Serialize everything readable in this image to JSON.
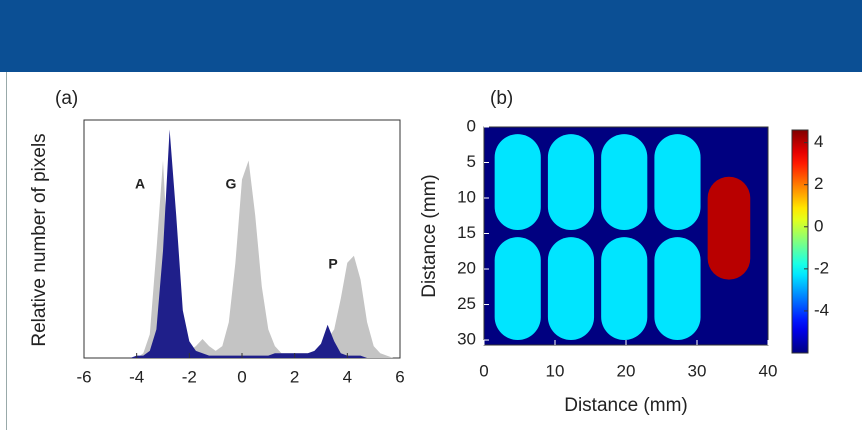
{
  "chart_data": [
    {
      "type": "area",
      "panel_label": "(a)",
      "ylabel": "Relative number of pixels",
      "x": [
        -6,
        -5.75,
        -5.5,
        -5.25,
        -5,
        -4.75,
        -4.5,
        -4.25,
        -4,
        -3.75,
        -3.5,
        -3.25,
        -3,
        -2.75,
        -2.5,
        -2.25,
        -2,
        -1.75,
        -1.5,
        -1.25,
        -1,
        -0.75,
        -0.5,
        -0.25,
        0,
        0.25,
        0.5,
        0.75,
        1,
        1.25,
        1.5,
        1.75,
        2,
        2.25,
        2.5,
        2.75,
        3,
        3.25,
        3.5,
        3.75,
        4,
        4.25,
        4.5,
        4.75,
        5,
        5.25,
        5.5,
        5.75,
        6
      ],
      "series": [
        {
          "color": "#c4c4c4",
          "values": [
            0,
            0,
            0,
            0,
            0,
            0,
            0,
            0,
            0,
            0.02,
            0.1,
            0.45,
            0.83,
            0.3,
            0.1,
            0.04,
            0.03,
            0.05,
            0.08,
            0.05,
            0.03,
            0.05,
            0.15,
            0.4,
            0.75,
            0.83,
            0.6,
            0.3,
            0.12,
            0.05,
            0.02,
            0.02,
            0.02,
            0.02,
            0.02,
            0.02,
            0.04,
            0.08,
            0.12,
            0.25,
            0.4,
            0.43,
            0.33,
            0.15,
            0.05,
            0.02,
            0.01,
            0,
            0
          ]
        },
        {
          "color": "#1f1f8a",
          "values": [
            0,
            0,
            0,
            0,
            0,
            0,
            0,
            0,
            0.01,
            0.01,
            0.03,
            0.12,
            0.45,
            0.96,
            0.6,
            0.2,
            0.07,
            0.03,
            0.02,
            0.01,
            0.01,
            0.01,
            0.01,
            0.01,
            0.01,
            0.01,
            0.01,
            0.01,
            0.01,
            0.02,
            0.02,
            0.02,
            0.02,
            0.02,
            0.02,
            0.03,
            0.06,
            0.14,
            0.07,
            0.02,
            0.01,
            0.01,
            0.01,
            0,
            0,
            0,
            0,
            0,
            0
          ]
        }
      ],
      "annotations": [
        "A",
        "G",
        "P"
      ],
      "xlim": [
        -6,
        6
      ],
      "xticks": [
        -6,
        -4,
        -2,
        0,
        2,
        4,
        6
      ],
      "ylim": [
        0,
        1
      ]
    },
    {
      "type": "heatmap",
      "panel_label": "(b)",
      "xlabel": "Distance (mm)",
      "ylabel": "Distance (mm)",
      "xlim": [
        0,
        40
      ],
      "xticks": [
        0,
        10,
        20,
        30,
        40
      ],
      "ylim": [
        0,
        30.7
      ],
      "yticks": [
        0,
        5,
        10,
        15,
        20,
        25,
        30
      ],
      "y_inverted": true,
      "colormap": "jet",
      "clim": [
        -6,
        4.6
      ],
      "cticks": [
        4,
        2,
        0,
        -2,
        -4
      ],
      "background": -6,
      "regions": [
        {
          "x": [
            1.5,
            8
          ],
          "y": [
            1,
            14.5
          ],
          "value": -2.3
        },
        {
          "x": [
            9,
            15.5
          ],
          "y": [
            1,
            14.5
          ],
          "value": -2.3
        },
        {
          "x": [
            16.5,
            23
          ],
          "y": [
            1,
            14.5
          ],
          "value": -2.3
        },
        {
          "x": [
            24,
            30.5
          ],
          "y": [
            1,
            14.5
          ],
          "value": -2.3
        },
        {
          "x": [
            1.5,
            8
          ],
          "y": [
            15.5,
            30
          ],
          "value": -2.3
        },
        {
          "x": [
            9,
            15.5
          ],
          "y": [
            15.5,
            30
          ],
          "value": -2.3
        },
        {
          "x": [
            16.5,
            23
          ],
          "y": [
            15.5,
            30
          ],
          "value": -2.3
        },
        {
          "x": [
            24,
            30.5
          ],
          "y": [
            15.5,
            30
          ],
          "value": -2.3
        },
        {
          "x": [
            31.5,
            37.5
          ],
          "y": [
            7,
            21.5
          ],
          "value": 4
        }
      ]
    }
  ]
}
